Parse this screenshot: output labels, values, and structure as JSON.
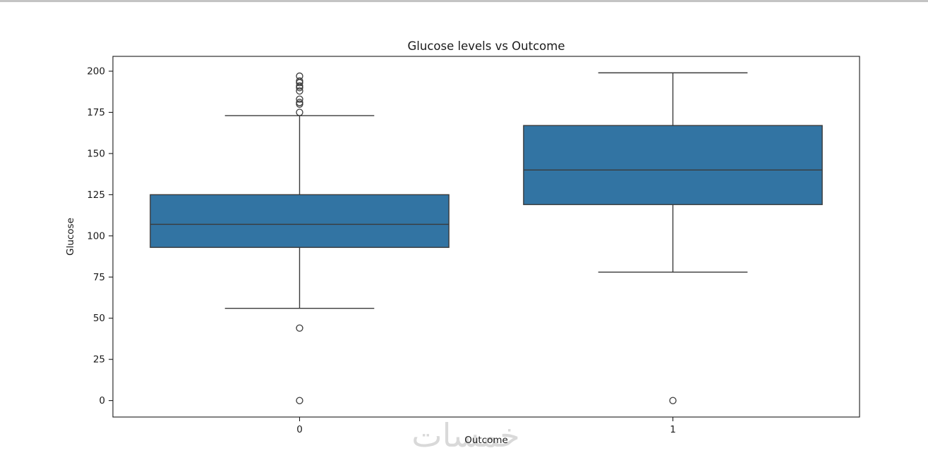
{
  "page": {
    "top_border_color": "#c4c4c4",
    "background_color": "#ffffff"
  },
  "chart_data": {
    "type": "boxplot",
    "title": "Glucose levels vs Outcome",
    "xlabel": "Outcome",
    "ylabel": "Glucose",
    "categories": [
      "0",
      "1"
    ],
    "y_ticks": [
      0,
      25,
      50,
      75,
      100,
      125,
      150,
      175,
      200
    ],
    "ylim": [
      -10,
      209
    ],
    "grid": false,
    "legend": null,
    "box_fill_color": "#3274a3",
    "box_line_color": "#3a3a3a",
    "spine_color": "#1a1a1a",
    "series": [
      {
        "label": "0",
        "q1": 93,
        "median": 107,
        "q3": 125,
        "whisker_low": 56,
        "whisker_high": 173,
        "outliers": [
          197,
          194,
          193,
          191,
          190,
          188,
          183,
          181,
          180,
          175,
          44,
          0
        ]
      },
      {
        "label": "1",
        "q1": 119,
        "median": 140,
        "q3": 167,
        "whisker_low": 78,
        "whisker_high": 199,
        "outliers": [
          0
        ]
      }
    ]
  },
  "watermark": {
    "text": "خمسات",
    "color": "#d7d7d7"
  }
}
